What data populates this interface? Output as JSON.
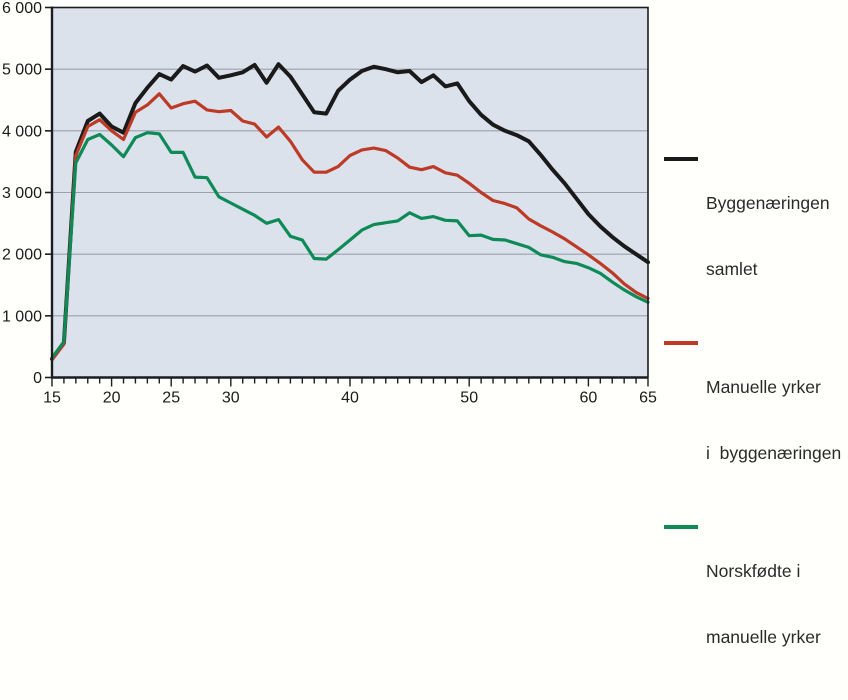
{
  "figure": {
    "background": "#fffffc"
  },
  "chart_data": {
    "type": "line",
    "xlabel": "",
    "ylabel": "",
    "xlim": [
      15,
      65
    ],
    "ylim": [
      0,
      6000
    ],
    "grid": true,
    "plot_bg": "#dce2ec",
    "grid_color": "#9aa0ab",
    "axis_color": "#1a1d21",
    "x": [
      15,
      16,
      17,
      18,
      19,
      20,
      21,
      22,
      23,
      24,
      25,
      26,
      27,
      28,
      29,
      30,
      31,
      32,
      33,
      34,
      35,
      36,
      37,
      38,
      39,
      40,
      41,
      42,
      43,
      44,
      45,
      46,
      47,
      48,
      49,
      50,
      51,
      52,
      53,
      54,
      55,
      56,
      57,
      58,
      59,
      60,
      61,
      62,
      63,
      64,
      65
    ],
    "xtick_labeled": [
      15,
      20,
      25,
      30,
      40,
      50,
      60,
      65
    ],
    "ytick_values": [
      0,
      1000,
      2000,
      3000,
      4000,
      5000,
      6000
    ],
    "ytick_labels": [
      "0",
      "1 000",
      "2 000",
      "3 000",
      "4 000",
      "5 000",
      "6 000"
    ],
    "series": [
      {
        "name": "Byggenæringen samlet",
        "color": "#1a1a1a",
        "stroke_width": 4,
        "values": [
          300,
          560,
          3660,
          4160,
          4280,
          4070,
          3970,
          4450,
          4700,
          4920,
          4830,
          5050,
          4960,
          5060,
          4860,
          4900,
          4950,
          5070,
          4780,
          5080,
          4880,
          4590,
          4300,
          4280,
          4650,
          4830,
          4970,
          5040,
          5000,
          4950,
          4970,
          4790,
          4900,
          4720,
          4770,
          4480,
          4260,
          4100,
          4000,
          3930,
          3830,
          3610,
          3370,
          3150,
          2900,
          2650,
          2450,
          2280,
          2130,
          2000,
          1870
        ]
      },
      {
        "name": "Manuelle yrker i byggenæringen",
        "color": "#bc3a26",
        "stroke_width": 3.2,
        "values": [
          290,
          540,
          3600,
          4070,
          4180,
          4000,
          3860,
          4300,
          4420,
          4600,
          4370,
          4440,
          4480,
          4340,
          4310,
          4330,
          4160,
          4110,
          3900,
          4060,
          3830,
          3530,
          3330,
          3330,
          3420,
          3600,
          3690,
          3720,
          3680,
          3560,
          3410,
          3370,
          3420,
          3320,
          3280,
          3150,
          3000,
          2870,
          2820,
          2750,
          2570,
          2460,
          2360,
          2250,
          2120,
          1990,
          1850,
          1700,
          1520,
          1380,
          1280
        ]
      },
      {
        "name": "Norskfødte i manuelle yrker",
        "color": "#0e8a57",
        "stroke_width": 3.2,
        "values": [
          320,
          580,
          3480,
          3860,
          3940,
          3770,
          3580,
          3890,
          3970,
          3950,
          3650,
          3650,
          3250,
          3240,
          2930,
          2830,
          2730,
          2630,
          2500,
          2560,
          2290,
          2230,
          1930,
          1920,
          2070,
          2230,
          2390,
          2480,
          2510,
          2540,
          2670,
          2580,
          2610,
          2550,
          2540,
          2300,
          2310,
          2240,
          2230,
          2170,
          2110,
          1990,
          1950,
          1880,
          1850,
          1780,
          1690,
          1550,
          1420,
          1310,
          1220
        ]
      }
    ],
    "legend_position": "right",
    "legend": [
      {
        "label_line1": "Byggenæringen",
        "label_line2": "samlet",
        "color": "#1a1a1a"
      },
      {
        "label_line1": "Manuelle yrker",
        "label_line2": "i  byggenæringen",
        "color": "#bc3a26"
      },
      {
        "label_line1": "Norskfødte i",
        "label_line2": "manuelle yrker",
        "color": "#0e8a57"
      }
    ]
  }
}
